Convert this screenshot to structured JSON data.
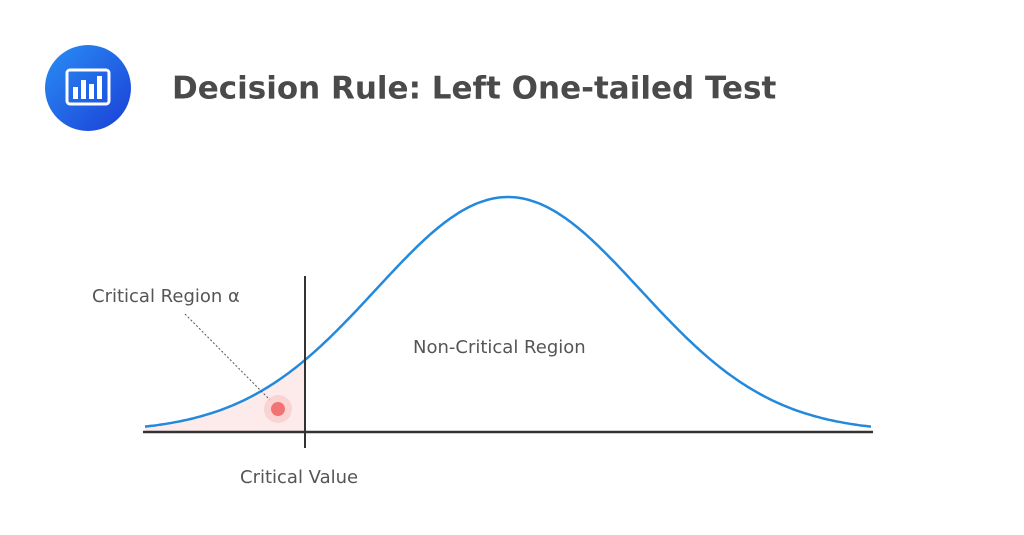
{
  "header": {
    "title": "Decision Rule: Left One-tailed Test"
  },
  "diagram": {
    "labels": {
      "critical_region": "Critical Region α",
      "non_critical_region": "Non-Critical Region",
      "critical_value": "Critical Value"
    }
  }
}
